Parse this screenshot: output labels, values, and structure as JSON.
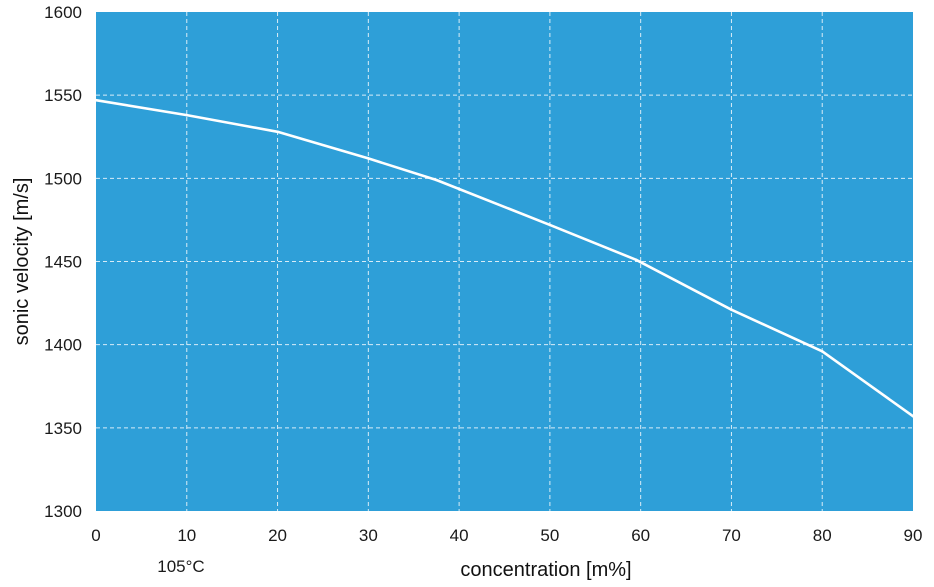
{
  "chart_data": {
    "type": "line",
    "xlabel": "concentration [m%]",
    "ylabel": "sonic velocity [m/s]",
    "xlim": [
      0,
      90
    ],
    "ylim": [
      1300,
      1600
    ],
    "xticks": [
      "0",
      "10",
      "20",
      "30",
      "40",
      "50",
      "60",
      "70",
      "80",
      "90"
    ],
    "yticks": [
      "1300",
      "1350",
      "1400",
      "1450",
      "1500",
      "1550",
      "1600"
    ],
    "grid": true,
    "annotations": [
      "105°C"
    ],
    "series": [
      {
        "x": [
          0,
          10,
          20,
          30,
          37.5,
          50,
          59.5,
          70,
          80,
          90
        ],
        "y": [
          1547,
          1538,
          1528,
          1512,
          1499,
          1472,
          1451,
          1421,
          1396,
          1357
        ]
      }
    ],
    "colors": {
      "plot_bg": "#2e9fd8",
      "line": "#ffffff",
      "grid": "#d8ecf7"
    }
  }
}
